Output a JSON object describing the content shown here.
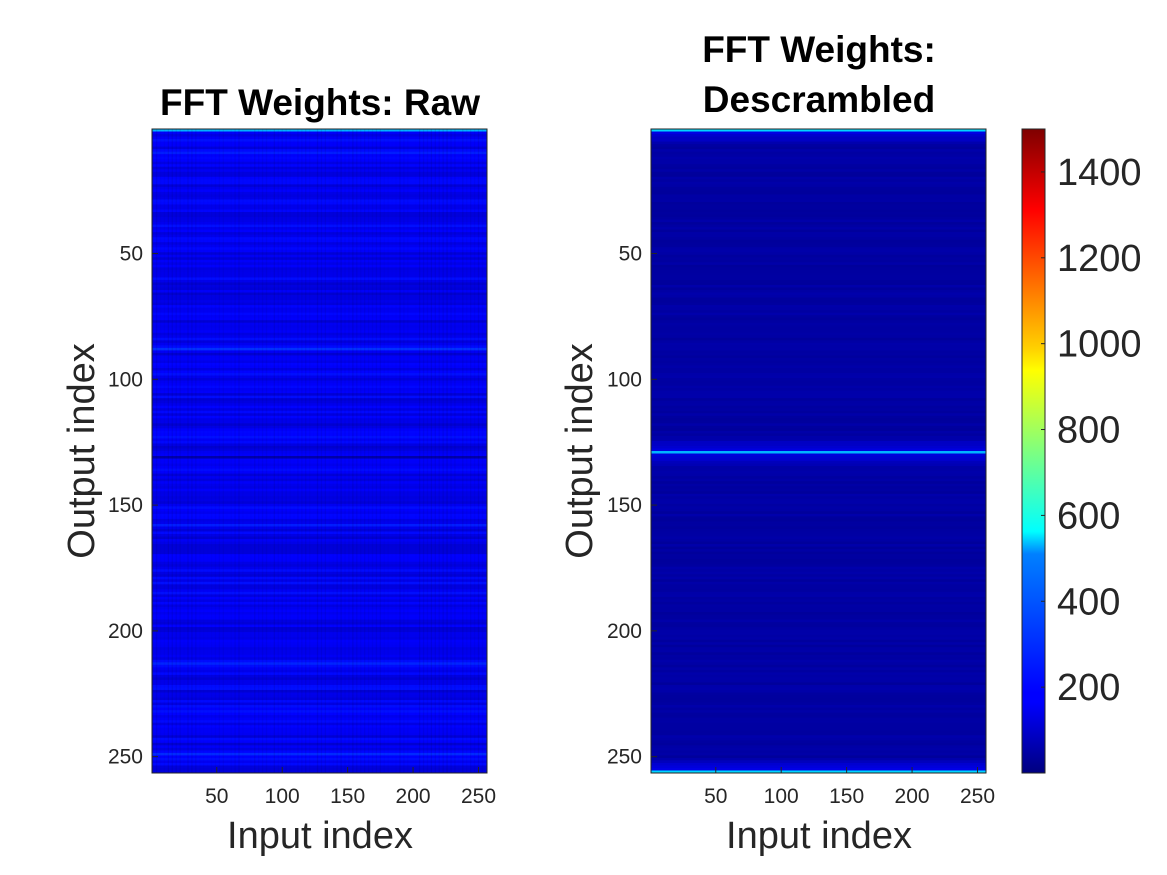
{
  "chart_data": [
    {
      "type": "heatmap",
      "title": "FFT Weights: Raw",
      "xlabel": "Input index",
      "ylabel": "Output index",
      "xlim": [
        1,
        256
      ],
      "ylim": [
        1,
        256
      ],
      "y_direction": "reverse",
      "xticks": [
        50,
        100,
        150,
        200,
        250
      ],
      "yticks": [
        50,
        100,
        150,
        200,
        250
      ],
      "colormap": "jet",
      "value_range": [
        0,
        1500
      ],
      "description_of_values": "uniformly low magnitudes (~100-250) with faint horizontal striping",
      "notable_rows": [
        {
          "row": 1,
          "level": 450
        },
        {
          "row": 10,
          "level": 230
        },
        {
          "row": 88,
          "level": 260
        },
        {
          "row": 131,
          "level": 60
        },
        {
          "row": 158,
          "level": 230
        },
        {
          "row": 213,
          "level": 240
        },
        {
          "row": 249,
          "level": 250
        }
      ]
    },
    {
      "type": "heatmap",
      "title": "FFT Weights: Descrambled",
      "xlabel": "Input index",
      "ylabel": "Output index",
      "xlim": [
        1,
        256
      ],
      "ylim": [
        1,
        256
      ],
      "y_direction": "reverse",
      "xticks": [
        50,
        100,
        150,
        200,
        250
      ],
      "yticks": [
        50,
        100,
        150,
        200,
        250
      ],
      "colormap": "jet",
      "value_range": [
        0,
        1500
      ],
      "description_of_values": "near-zero magnitudes except bright rows at the top, row 129 and the bottom",
      "notable_rows": [
        {
          "row": 1,
          "level": 500
        },
        {
          "row": 129,
          "level": 450
        },
        {
          "row": 256,
          "level": 500
        }
      ]
    }
  ],
  "colorbar": {
    "colormap": "jet",
    "range": [
      0,
      1500
    ],
    "ticks": [
      200,
      400,
      600,
      800,
      1000,
      1200,
      1400
    ]
  },
  "colors": {
    "axes": "#262626",
    "background": "#ffffff"
  }
}
